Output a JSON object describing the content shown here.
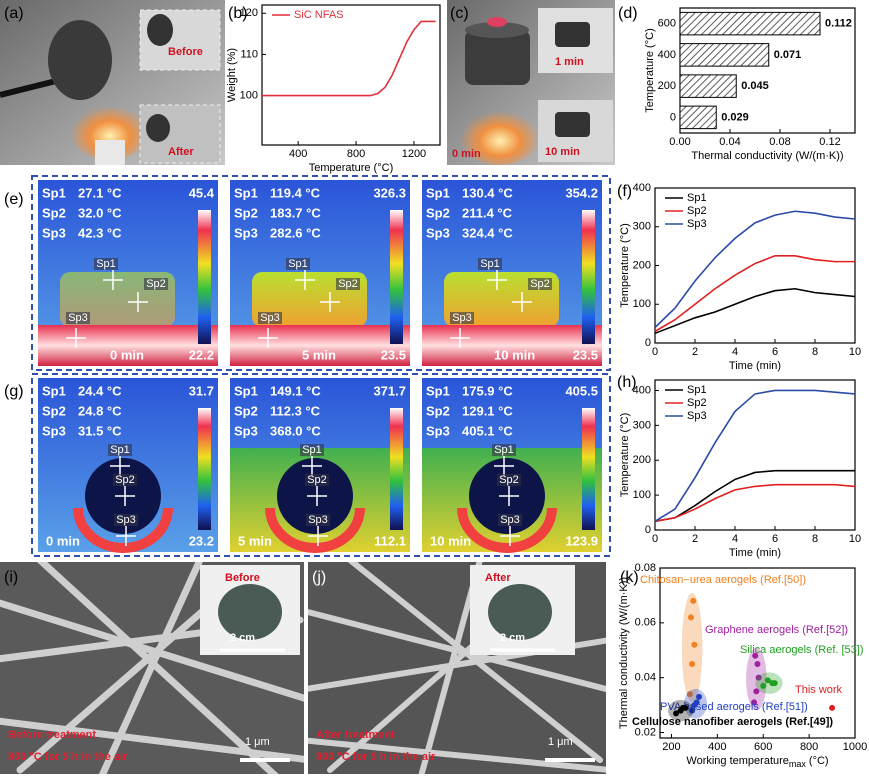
{
  "panels": {
    "a": {
      "label": "(a)",
      "before": "Before",
      "after": "After"
    },
    "c": {
      "label": "(c)",
      "t1": "1 min",
      "t10": "10 min",
      "t0": "0 min"
    },
    "e": {
      "label": "(e)",
      "images": [
        {
          "readings": [
            {
              "name": "Sp1",
              "value": "27.1 °C"
            },
            {
              "name": "Sp2",
              "value": "32.0 °C"
            },
            {
              "name": "Sp3",
              "value": "42.3 °C"
            }
          ],
          "max": "45.4",
          "min": "22.2",
          "time": "0 min",
          "markers": [
            "Sp1",
            "Sp2",
            "Sp3"
          ]
        },
        {
          "readings": [
            {
              "name": "Sp1",
              "value": "119.4 °C"
            },
            {
              "name": "Sp2",
              "value": "183.7 °C"
            },
            {
              "name": "Sp3",
              "value": "282.6 °C"
            }
          ],
          "max": "326.3",
          "min": "23.5",
          "time": "5 min",
          "markers": [
            "Sp1",
            "Sp2",
            "Sp3"
          ]
        },
        {
          "readings": [
            {
              "name": "Sp1",
              "value": "130.4 °C"
            },
            {
              "name": "Sp2",
              "value": "211.4 °C"
            },
            {
              "name": "Sp3",
              "value": "324.4 °C"
            }
          ],
          "max": "354.2",
          "min": "23.5",
          "time": "10 min",
          "markers": [
            "Sp1",
            "Sp2",
            "Sp3"
          ]
        }
      ]
    },
    "g": {
      "label": "(g)",
      "images": [
        {
          "readings": [
            {
              "name": "Sp1",
              "value": "24.4 °C"
            },
            {
              "name": "Sp2",
              "value": "24.8 °C"
            },
            {
              "name": "Sp3",
              "value": "31.5 °C"
            }
          ],
          "max": "31.7",
          "min": "23.2",
          "time": "0 min",
          "markers": [
            "Sp1",
            "Sp2",
            "Sp3"
          ]
        },
        {
          "readings": [
            {
              "name": "Sp1",
              "value": "149.1 °C"
            },
            {
              "name": "Sp2",
              "value": "112.3 °C"
            },
            {
              "name": "Sp3",
              "value": "368.0 °C"
            }
          ],
          "max": "371.7",
          "min": "112.1",
          "time": "5 min",
          "markers": [
            "Sp1",
            "Sp2",
            "Sp3"
          ]
        },
        {
          "readings": [
            {
              "name": "Sp1",
              "value": "175.9 °C"
            },
            {
              "name": "Sp2",
              "value": "129.1 °C"
            },
            {
              "name": "Sp3",
              "value": "405.1 °C"
            }
          ],
          "max": "405.5",
          "min": "123.9",
          "time": "10 min",
          "markers": [
            "Sp1",
            "Sp2",
            "Sp3"
          ]
        }
      ]
    },
    "i": {
      "label": "(i)",
      "inset": "Before",
      "inset_scale": "2 cm",
      "caption": "Before treatment",
      "condition": "800 °C for 5 h in the air",
      "scale": "1 μm"
    },
    "j": {
      "label": "(j)",
      "inset": "After",
      "inset_scale": "2 cm",
      "caption": "After treatment",
      "condition": "800 °C for 5 h in the air",
      "scale": "1 μm"
    }
  },
  "chart_data": [
    {
      "type": "line",
      "panel": "(b)",
      "xlabel": "Temperature (°C)",
      "ylabel": "Weight (%)",
      "x": [
        150,
        300,
        500,
        700,
        900,
        950,
        1000,
        1050,
        1100,
        1150,
        1200,
        1250,
        1300,
        1350
      ],
      "series": [
        {
          "name": "SiC NFAS",
          "color": "#e0303a",
          "values": [
            100,
            100,
            100,
            100,
            100,
            100.5,
            102,
            105,
            109,
            113,
            116,
            118,
            118,
            118
          ]
        }
      ],
      "xlim": [
        150,
        1380
      ],
      "xticks": [
        400,
        800,
        1200
      ],
      "ylim": [
        88,
        122
      ],
      "yticks": [
        100,
        110,
        120
      ],
      "legend": "upper left"
    },
    {
      "type": "hbar",
      "panel": "(d)",
      "xlabel": "Thermal conductivity (W/(m·K))",
      "ylabel": "Temperature (°C)",
      "categories": [
        "0",
        "200",
        "400",
        "600"
      ],
      "values": [
        0.029,
        0.045,
        0.071,
        0.112
      ],
      "color": "#555555",
      "xlim": [
        0,
        0.14
      ],
      "xticks": [
        {
          "value": 0,
          "label": "0.00"
        },
        0.04,
        0.08,
        0.12
      ]
    },
    {
      "type": "line",
      "panel": "(f)",
      "xlabel": "Time (min)",
      "ylabel": "Temperature (°C)",
      "x": [
        0,
        1,
        2,
        3,
        4,
        5,
        6,
        7,
        8,
        9,
        10
      ],
      "series": [
        {
          "name": "Sp1",
          "color": "#000000",
          "values": [
            25,
            45,
            65,
            80,
            100,
            120,
            135,
            140,
            130,
            125,
            120
          ]
        },
        {
          "name": "Sp2",
          "color": "#e02020",
          "values": [
            30,
            60,
            100,
            140,
            175,
            205,
            225,
            225,
            215,
            210,
            210
          ]
        },
        {
          "name": "Sp3",
          "color": "#2a4aa8",
          "values": [
            40,
            90,
            160,
            220,
            270,
            310,
            330,
            340,
            335,
            325,
            320
          ]
        }
      ],
      "xlim": [
        0,
        10
      ],
      "xticks": [
        0,
        2,
        4,
        6,
        8,
        10
      ],
      "ylim": [
        0,
        400
      ],
      "yticks": [
        0,
        100,
        200,
        300,
        400
      ],
      "legend": "upper left"
    },
    {
      "type": "line",
      "panel": "(h)",
      "xlabel": "Time (min)",
      "ylabel": "Temperature (°C)",
      "x": [
        0,
        1,
        2,
        3,
        4,
        5,
        6,
        7,
        8,
        9,
        10
      ],
      "series": [
        {
          "name": "Sp1",
          "color": "#000000",
          "values": [
            25,
            35,
            70,
            110,
            145,
            165,
            170,
            170,
            170,
            170,
            170
          ]
        },
        {
          "name": "Sp2",
          "color": "#e02020",
          "values": [
            25,
            35,
            60,
            90,
            115,
            125,
            130,
            130,
            130,
            130,
            125
          ]
        },
        {
          "name": "Sp3",
          "color": "#2a4aa8",
          "values": [
            25,
            60,
            150,
            250,
            340,
            390,
            400,
            400,
            400,
            395,
            390
          ]
        }
      ],
      "xlim": [
        0,
        10
      ],
      "xticks": [
        0,
        2,
        4,
        6,
        8,
        10
      ],
      "ylim": [
        0,
        430
      ],
      "yticks": [
        0,
        100,
        200,
        300,
        400
      ],
      "legend": "upper left"
    },
    {
      "type": "scatter",
      "panel": "(k)",
      "xlabel": "Working temperature",
      "xlabel_sub": "max",
      "xlabel_unit": "(°C)",
      "ylabel": "Thermal conductivity (W/(m·K))",
      "series": [
        {
          "name": "Chitosan−urea aerogels (Ref.[50])",
          "color": "#f08020",
          "x": [
            280,
            290,
            300,
            285,
            295
          ],
          "values": [
            0.034,
            0.045,
            0.052,
            0.062,
            0.068
          ]
        },
        {
          "name": "Graphene aerogels (Ref.[52])",
          "color": "#a020a0",
          "x": [
            560,
            570,
            580,
            575,
            565
          ],
          "values": [
            0.031,
            0.035,
            0.04,
            0.045,
            0.048
          ]
        },
        {
          "name": "Silica aerogels (Ref. [53])",
          "color": "#20a020",
          "x": [
            600,
            620,
            640,
            650
          ],
          "values": [
            0.037,
            0.039,
            0.038,
            0.038
          ]
        },
        {
          "name": "This work",
          "color": "#e02020",
          "x": [
            900
          ],
          "values": [
            0.029
          ]
        },
        {
          "name": "PVA based aerogels (Ref.[51])",
          "color": "#2040c0",
          "x": [
            290,
            300,
            310,
            320
          ],
          "values": [
            0.028,
            0.03,
            0.031,
            0.033
          ]
        },
        {
          "name": "Cellulose nanofiber aerogels (Ref.[49])",
          "color": "#000000",
          "x": [
            220,
            240,
            250,
            260
          ],
          "values": [
            0.027,
            0.028,
            0.029,
            0.029
          ]
        }
      ],
      "xlim": [
        150,
        1000
      ],
      "xticks": [
        200,
        400,
        600,
        800,
        1000
      ],
      "ylim": [
        0.018,
        0.08
      ],
      "yticks": [
        0.02,
        0.04,
        0.06,
        0.08
      ]
    }
  ]
}
